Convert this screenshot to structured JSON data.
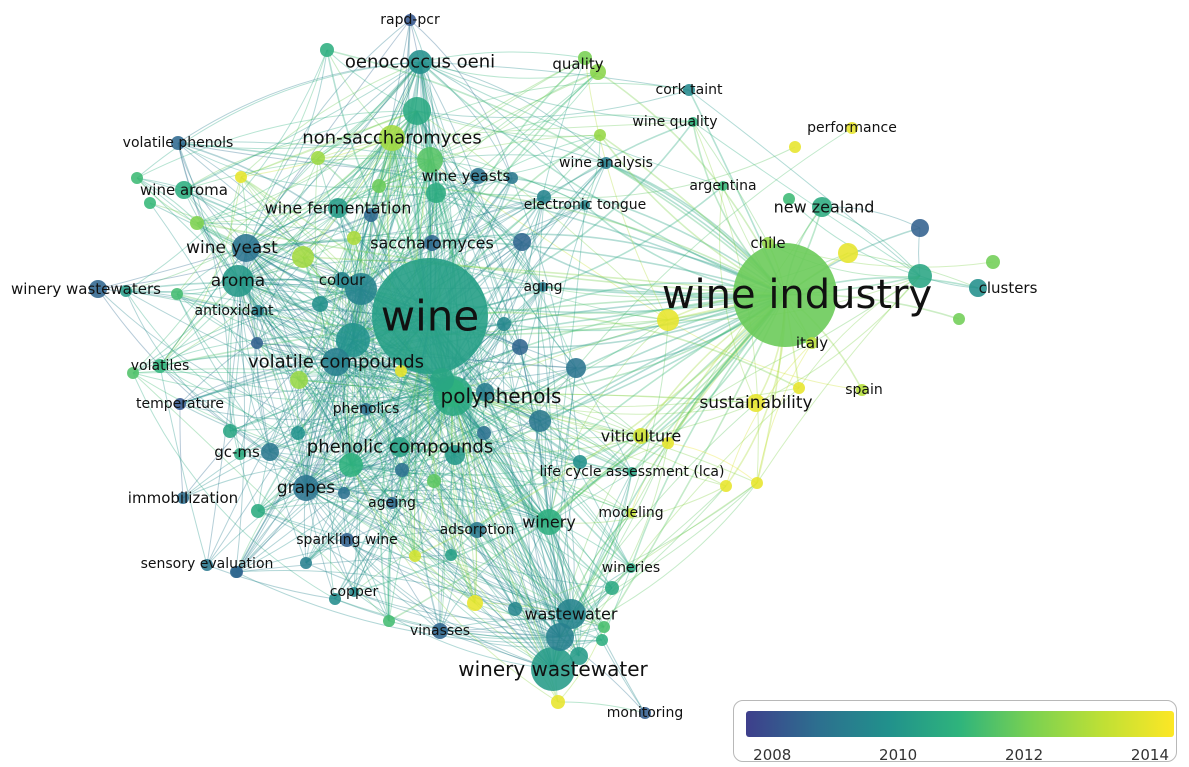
{
  "nodes": [
    {
      "label": "wine",
      "year": 2010.3
    },
    {
      "label": "wine industry",
      "year": 2011.9
    },
    {
      "label": "rapd-pcr",
      "year": 2008.2
    },
    {
      "label": "oenococcus oeni",
      "year": 2009.8
    },
    {
      "label": "quality",
      "year": 2012.4
    },
    {
      "label": "cork taint",
      "year": 2009.6
    },
    {
      "label": "performance",
      "year": 2014.0
    },
    {
      "label": "wine quality",
      "year": 2011.0
    },
    {
      "label": "non-saccharomyces",
      "year": 2012.8
    },
    {
      "label": "volatile phenols",
      "year": 2008.6
    },
    {
      "label": "wine analysis",
      "year": 2009.2
    },
    {
      "label": "argentina",
      "year": 2011.1
    },
    {
      "label": "wine aroma",
      "year": 2010.8
    },
    {
      "label": "wine yeasts",
      "year": 2008.9
    },
    {
      "label": "new zealand",
      "year": 2010.7
    },
    {
      "label": "wine fermentation",
      "year": 2010.2
    },
    {
      "label": "electronic tongue",
      "year": 2009.5
    },
    {
      "label": "chile",
      "year": 2012.6
    },
    {
      "label": "wine yeast",
      "year": 2008.9
    },
    {
      "label": "saccharomyces",
      "year": 2008.6
    },
    {
      "label": "winery wastewaters",
      "year": 2008.5
    },
    {
      "label": "aroma",
      "year": 2010.1
    },
    {
      "label": "colour",
      "year": 2009.4
    },
    {
      "label": "aging",
      "year": 2009.1
    },
    {
      "label": "clusters",
      "year": 2009.8
    },
    {
      "label": "antioxidant",
      "year": 2009.3
    },
    {
      "label": "italy",
      "year": 2013.2
    },
    {
      "label": "volatile compounds",
      "year": 2009.3
    },
    {
      "label": "volatiles",
      "year": 2011.0
    },
    {
      "label": "polyphenols",
      "year": 2010.6
    },
    {
      "label": "spain",
      "year": 2013.1
    },
    {
      "label": "sustainability",
      "year": 2014.0
    },
    {
      "label": "temperature",
      "year": 2008.2
    },
    {
      "label": "phenolics",
      "year": 2008.8
    },
    {
      "label": "viticulture",
      "year": 2013.6
    },
    {
      "label": "gc-ms",
      "year": 2009.0
    },
    {
      "label": "phenolic compounds",
      "year": 2010.4
    },
    {
      "label": "life cycle assessment (lca)",
      "year": 2010.5
    },
    {
      "label": "grapes",
      "year": 2008.9
    },
    {
      "label": "immobilization",
      "year": 2008.7
    },
    {
      "label": "ageing",
      "year": 2008.6
    },
    {
      "label": "modeling",
      "year": 2013.4
    },
    {
      "label": "winery",
      "year": 2010.8
    },
    {
      "label": "adsorption",
      "year": 2009.0
    },
    {
      "label": "sparkling wine",
      "year": 2008.4
    },
    {
      "label": "sensory evaluation",
      "year": 2008.3
    },
    {
      "label": "wineries",
      "year": 2010.6
    },
    {
      "label": "copper",
      "year": 2009.6
    },
    {
      "label": "wastewater",
      "year": 2009.4
    },
    {
      "label": "vinasses",
      "year": 2008.5
    },
    {
      "label": "winery wastewater",
      "year": 2010.2
    },
    {
      "label": "monitoring",
      "year": 2008.3
    }
  ],
  "legend": {
    "ticks": [
      "2008",
      "2010",
      "2012",
      "2014"
    ],
    "min": 2007.6,
    "max": 2014.4,
    "colors": [
      "#3e3f8c",
      "#2d6f8f",
      "#21918c",
      "#2fb47c",
      "#7ad151",
      "#bfe035",
      "#fde725"
    ]
  }
}
